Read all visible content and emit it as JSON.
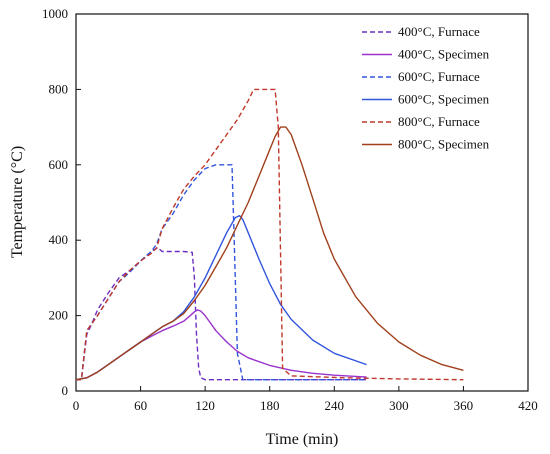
{
  "chart_data": {
    "type": "line",
    "title": "",
    "xlabel": "Time (min)",
    "ylabel": "Temperature (°C)",
    "xlim": [
      0,
      420
    ],
    "ylim": [
      0,
      1000
    ],
    "xticks": [
      "0",
      "60",
      "120",
      "180",
      "240",
      "300",
      "360",
      "420"
    ],
    "yticks": [
      "0",
      "200",
      "400",
      "600",
      "800",
      "1000"
    ],
    "xtick_values": [
      0,
      60,
      120,
      180,
      240,
      300,
      360,
      420
    ],
    "ytick_values": [
      0,
      200,
      400,
      600,
      800,
      1000
    ],
    "grid": false,
    "legend_position": "top-right",
    "series": [
      {
        "name": "400°C, Furnace",
        "color": "#6a2fc0",
        "dash": "dashed",
        "x": [
          0,
          5,
          10,
          15,
          20,
          30,
          40,
          50,
          60,
          70,
          76,
          80,
          90,
          100,
          108,
          110,
          112,
          114,
          116,
          120,
          130,
          200,
          270
        ],
        "y": [
          30,
          30,
          150,
          180,
          215,
          260,
          300,
          320,
          345,
          370,
          380,
          370,
          370,
          370,
          368,
          300,
          150,
          60,
          35,
          30,
          30,
          30,
          30
        ]
      },
      {
        "name": "400°C, Specimen",
        "color": "#9932cc",
        "dash": "solid",
        "x": [
          0,
          10,
          20,
          30,
          40,
          50,
          60,
          70,
          80,
          90,
          100,
          105,
          110,
          113,
          116,
          120,
          125,
          130,
          140,
          150,
          160,
          180,
          200,
          220,
          240,
          270
        ],
        "y": [
          30,
          35,
          50,
          70,
          90,
          110,
          130,
          145,
          160,
          172,
          185,
          197,
          210,
          215,
          212,
          200,
          180,
          160,
          130,
          105,
          88,
          68,
          55,
          47,
          42,
          37
        ]
      },
      {
        "name": "600°C, Furnace",
        "color": "#3355dd",
        "dash": "dashed",
        "x": [
          0,
          5,
          10,
          20,
          30,
          40,
          50,
          60,
          70,
          75,
          80,
          90,
          100,
          110,
          120,
          130,
          140,
          145,
          147,
          150,
          155,
          200,
          270
        ],
        "y": [
          30,
          30,
          160,
          200,
          245,
          290,
          315,
          345,
          370,
          390,
          430,
          470,
          520,
          560,
          590,
          600,
          600,
          600,
          400,
          100,
          30,
          30,
          30
        ]
      },
      {
        "name": "600°C, Specimen",
        "color": "#3355dd",
        "dash": "solid",
        "x": [
          0,
          10,
          20,
          30,
          40,
          50,
          60,
          70,
          80,
          90,
          100,
          110,
          120,
          130,
          140,
          148,
          152,
          155,
          160,
          170,
          180,
          190,
          200,
          220,
          240,
          270
        ],
        "y": [
          30,
          35,
          50,
          70,
          90,
          110,
          130,
          150,
          170,
          185,
          210,
          250,
          300,
          360,
          420,
          460,
          465,
          455,
          420,
          350,
          285,
          230,
          190,
          135,
          100,
          70
        ]
      },
      {
        "name": "800°C, Furnace",
        "color": "#c0392b",
        "dash": "dashed",
        "x": [
          0,
          5,
          10,
          20,
          30,
          40,
          50,
          60,
          70,
          75,
          80,
          90,
          100,
          110,
          120,
          130,
          140,
          150,
          160,
          165,
          170,
          180,
          185,
          188,
          192,
          200,
          250,
          300,
          360
        ],
        "y": [
          30,
          30,
          160,
          200,
          245,
          290,
          320,
          345,
          365,
          380,
          430,
          485,
          535,
          570,
          600,
          640,
          680,
          720,
          770,
          800,
          800,
          800,
          800,
          700,
          60,
          40,
          35,
          32,
          30
        ]
      },
      {
        "name": "800°C, Specimen",
        "color": "#a0401c",
        "dash": "solid",
        "x": [
          0,
          10,
          20,
          30,
          40,
          50,
          60,
          70,
          80,
          90,
          100,
          110,
          120,
          130,
          140,
          150,
          160,
          170,
          180,
          185,
          190,
          195,
          200,
          210,
          220,
          230,
          240,
          260,
          280,
          300,
          320,
          340,
          360
        ],
        "y": [
          30,
          35,
          50,
          70,
          90,
          110,
          130,
          150,
          170,
          185,
          205,
          240,
          280,
          330,
          380,
          440,
          500,
          570,
          640,
          675,
          700,
          700,
          680,
          600,
          510,
          420,
          350,
          250,
          180,
          130,
          95,
          70,
          55
        ]
      }
    ]
  }
}
